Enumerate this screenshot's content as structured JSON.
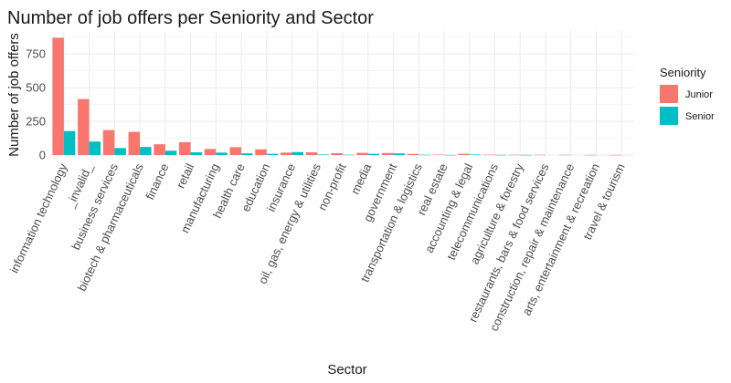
{
  "chart_data": {
    "type": "bar",
    "title": "Number of job offers per Seniority and Sector",
    "xlabel": "Sector",
    "ylabel": "Number of job offers",
    "ylim": [
      0,
      920
    ],
    "yticks": [
      0,
      250,
      500,
      750
    ],
    "grid": true,
    "legend": {
      "title": "Seniority",
      "placement": "right"
    },
    "categories": [
      "information technology",
      "_invalid_",
      "business services",
      "biotech & pharmaceuticals",
      "finance",
      "retail",
      "manufacturing",
      "health care",
      "education",
      "insurance",
      "oil, gas, energy & utilities",
      "non-profit",
      "media",
      "government",
      "transportation & logistics",
      "real estate",
      "accounting & legal",
      "telecommunications",
      "agriculture & forestry",
      "restaurants, bars & food services",
      "construction, repair & maintenance",
      "arts, entertainment & recreation",
      "travel & tourism"
    ],
    "series": [
      {
        "name": "Junior",
        "color": "#F8766D",
        "values": [
          870,
          415,
          185,
          172,
          80,
          95,
          45,
          58,
          42,
          18,
          20,
          14,
          16,
          15,
          8,
          3,
          9,
          3,
          2,
          2,
          2,
          1,
          1
        ]
      },
      {
        "name": "Senior",
        "color": "#00BFC4",
        "values": [
          178,
          100,
          52,
          60,
          32,
          20,
          18,
          12,
          9,
          22,
          4,
          2,
          9,
          12,
          2,
          1,
          4,
          1,
          1,
          0,
          0,
          0,
          0
        ]
      }
    ]
  }
}
